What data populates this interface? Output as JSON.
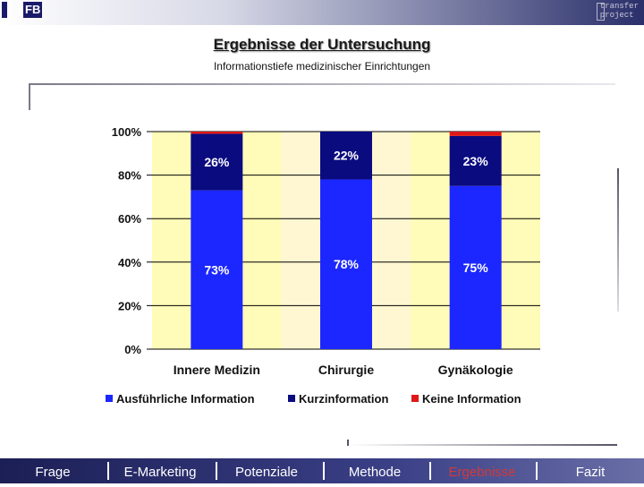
{
  "header": {
    "logo_left_text": "FB",
    "logo_right_line1": "transfer",
    "logo_right_line2": "project"
  },
  "slide": {
    "title": "Ergebnisse der Untersuchung",
    "subtitle": "Informationstiefe medizinischer Einrichtungen"
  },
  "chart_data": {
    "type": "bar",
    "stacked": "percent",
    "categories": [
      "Innere Medizin",
      "Chirurgie",
      "Gynäkologie"
    ],
    "series": [
      {
        "name": "Ausführliche Information",
        "values": [
          73,
          78,
          75
        ],
        "labels": [
          "73%",
          "78%",
          "75%"
        ],
        "color": "#1c27ff"
      },
      {
        "name": "Kurzinformation",
        "values": [
          26,
          22,
          23
        ],
        "labels": [
          "26%",
          "22%",
          "23%"
        ],
        "color": "#0b0b80"
      },
      {
        "name": "Keine Information",
        "values": [
          1,
          0,
          2
        ],
        "labels": [
          "",
          "",
          ""
        ],
        "color": "#e01818"
      }
    ],
    "yticks": [
      "0%",
      "20%",
      "40%",
      "60%",
      "80%",
      "100%"
    ],
    "ylim": [
      0,
      100
    ],
    "grid": true,
    "legend": "bottom",
    "plot_background": [
      "#fffbb8",
      "#fff7d2"
    ]
  },
  "nav": {
    "items": [
      {
        "label": "Frage",
        "active": false
      },
      {
        "label": "E-Marketing",
        "active": false
      },
      {
        "label": "Potenziale",
        "active": false
      },
      {
        "label": "Methode",
        "active": false
      },
      {
        "label": "Ergebnisse",
        "active": true
      },
      {
        "label": "Fazit",
        "active": false
      }
    ]
  }
}
